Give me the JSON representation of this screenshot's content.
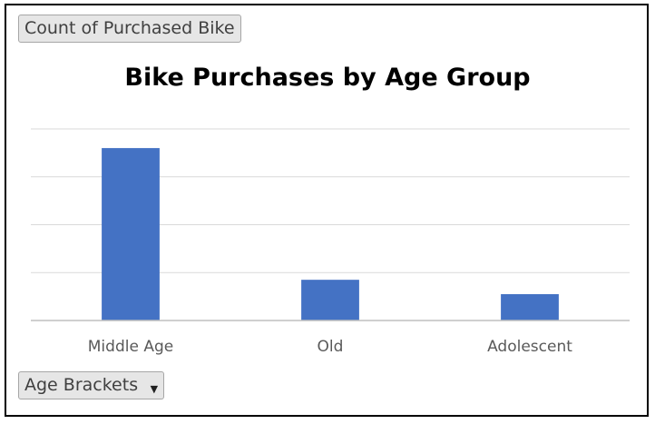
{
  "value_field_button": {
    "label": "Count of Purchased Bike"
  },
  "axis_field_button": {
    "label": "Age Brackets"
  },
  "chart_data": {
    "type": "bar",
    "title": "Bike Purchases by Age Group",
    "categories": [
      "Middle Age",
      "Old",
      "Adolescent"
    ],
    "values": [
      360,
      85,
      55
    ],
    "ylim": [
      0,
      400
    ],
    "gridlines": true,
    "tick_labels_visible": false,
    "xlabel": "",
    "ylabel": "",
    "bar_color": "#4472c4",
    "gridline_color": "#d9d9d9"
  }
}
